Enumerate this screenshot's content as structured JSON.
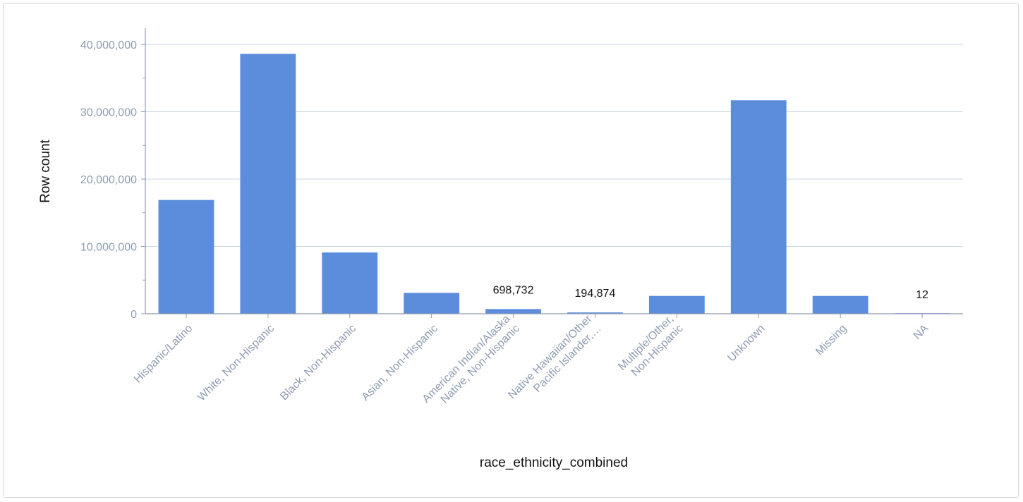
{
  "chart_data": {
    "type": "bar",
    "xlabel": "race_ethnicity_combined",
    "ylabel": "Row count",
    "ylim": [
      0,
      42000000
    ],
    "yticks": [
      0,
      10000000,
      20000000,
      30000000,
      40000000
    ],
    "ytick_labels": [
      "0",
      "10,000,000",
      "20,000,000",
      "30,000,000",
      "40,000,000"
    ],
    "grid": true,
    "bar_color": "#5b8ddc",
    "categories": [
      [
        "Hispanic/Latino"
      ],
      [
        "White, Non-Hispanic"
      ],
      [
        "Black, Non-Hispanic"
      ],
      [
        "Asian, Non-Hispanic"
      ],
      [
        "American Indian/Alaska",
        "Native, Non-Hispanic"
      ],
      [
        "Native Hawaiian/Other",
        "Pacific Islander,…"
      ],
      [
        "Multiple/Other,",
        "Non-Hispanic"
      ],
      [
        "Unknown"
      ],
      [
        "Missing"
      ],
      [
        "NA"
      ]
    ],
    "values": [
      16900000,
      38600000,
      9100000,
      3100000,
      698732,
      194874,
      2650000,
      31700000,
      2650000,
      12
    ],
    "data_labels": [
      "",
      "",
      "",
      "",
      "698,732",
      "194,874",
      "",
      "",
      "",
      "12"
    ]
  }
}
